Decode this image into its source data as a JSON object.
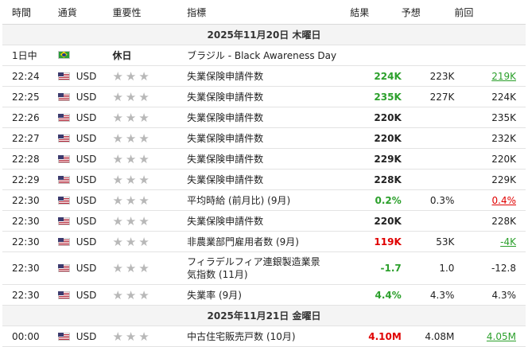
{
  "headers": {
    "time": "時間",
    "currency": "通貨",
    "importance": "重要性",
    "event": "指標",
    "actual": "結果",
    "forecast": "予想",
    "previous": "前回"
  },
  "importance_stars": "★★★",
  "colors": {
    "positive": "#2ca02c",
    "negative": "#e00000",
    "star_inactive": "#b8b8b8"
  },
  "date1": "2025年11月20日 木曜日",
  "date2": "2025年11月21日 金曜日",
  "holiday": {
    "time": "1日中",
    "flag": "brazil-flag",
    "label": "休日",
    "event": "ブラジル - Black Awareness Day"
  },
  "rows1": [
    {
      "time": "22:24",
      "currency": "USD",
      "event": "失業保険申請件数",
      "actual": "224K",
      "actual_color": "green",
      "forecast": "223K",
      "previous": "219K",
      "previous_color": "green"
    },
    {
      "time": "22:25",
      "currency": "USD",
      "event": "失業保険申請件数",
      "actual": "235K",
      "actual_color": "green",
      "forecast": "227K",
      "previous": "224K",
      "previous_color": ""
    },
    {
      "time": "22:26",
      "currency": "USD",
      "event": "失業保険申請件数",
      "actual": "220K",
      "actual_color": "",
      "forecast": "",
      "previous": "235K",
      "previous_color": ""
    },
    {
      "time": "22:27",
      "currency": "USD",
      "event": "失業保険申請件数",
      "actual": "220K",
      "actual_color": "",
      "forecast": "",
      "previous": "232K",
      "previous_color": ""
    },
    {
      "time": "22:28",
      "currency": "USD",
      "event": "失業保険申請件数",
      "actual": "229K",
      "actual_color": "",
      "forecast": "",
      "previous": "220K",
      "previous_color": ""
    },
    {
      "time": "22:29",
      "currency": "USD",
      "event": "失業保険申請件数",
      "actual": "228K",
      "actual_color": "",
      "forecast": "",
      "previous": "229K",
      "previous_color": ""
    },
    {
      "time": "22:30",
      "currency": "USD",
      "event": "平均時給 (前月比) (9月)",
      "actual": "0.2%",
      "actual_color": "green",
      "forecast": "0.3%",
      "previous": "0.4%",
      "previous_color": "red"
    },
    {
      "time": "22:30",
      "currency": "USD",
      "event": "失業保険申請件数",
      "actual": "220K",
      "actual_color": "",
      "forecast": "",
      "previous": "228K",
      "previous_color": ""
    },
    {
      "time": "22:30",
      "currency": "USD",
      "event": "非農業部門雇用者数 (9月)",
      "actual": "119K",
      "actual_color": "red",
      "forecast": "53K",
      "previous": "-4K",
      "previous_color": "green"
    },
    {
      "time": "22:30",
      "currency": "USD",
      "event": "フィラデルフィア連銀製造業景気指数 (11月)",
      "event_line1": "フィラデルフィア連銀製造業景",
      "event_line2": "気指数 (11月)",
      "actual": "-1.7",
      "actual_color": "green",
      "forecast": "1.0",
      "previous": "-12.8",
      "previous_color": "",
      "tall": true
    },
    {
      "time": "22:30",
      "currency": "USD",
      "event": "失業率 (9月)",
      "actual": "4.4%",
      "actual_color": "green",
      "forecast": "4.3%",
      "previous": "4.3%",
      "previous_color": ""
    }
  ],
  "rows2": [
    {
      "time": "00:00",
      "currency": "USD",
      "event": "中古住宅販売戸数 (10月)",
      "actual": "4.10M",
      "actual_color": "red",
      "forecast": "4.08M",
      "previous": "4.05M",
      "previous_color": "green"
    }
  ]
}
